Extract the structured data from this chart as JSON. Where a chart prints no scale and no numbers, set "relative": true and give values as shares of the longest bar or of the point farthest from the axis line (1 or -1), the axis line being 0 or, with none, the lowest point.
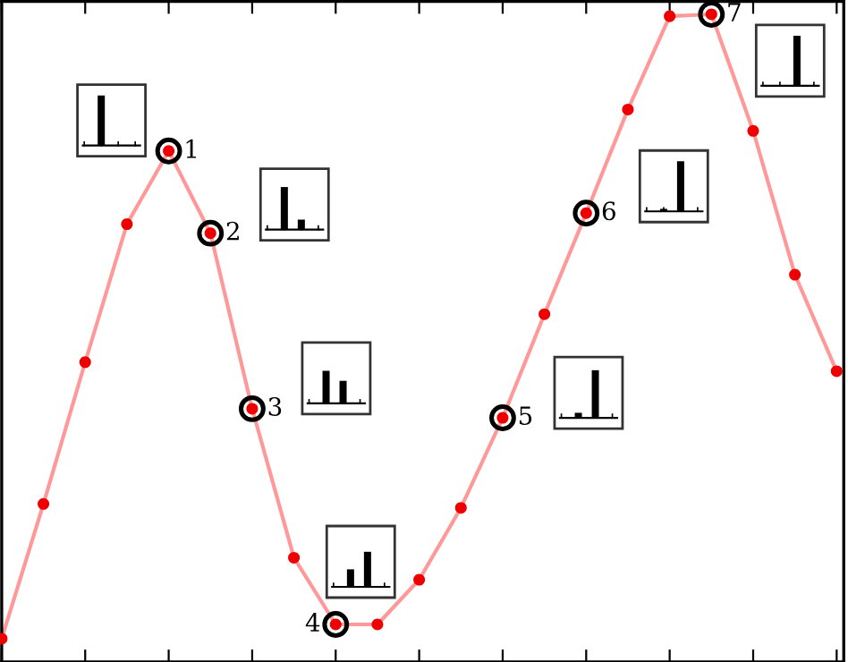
{
  "chart_data": {
    "type": "line",
    "relative": true,
    "categories": [
      null,
      null,
      null,
      null,
      null,
      null,
      null,
      null,
      null,
      null,
      null,
      null,
      null,
      null,
      null,
      null,
      null,
      null,
      null,
      null,
      null
    ],
    "series": [
      {
        "color": "#ff9999",
        "values": [
          0.036,
          0.244,
          0.463,
          0.676,
          0.789,
          0.662,
          0.391,
          0.161,
          0.058,
          0.058,
          0.127,
          0.238,
          0.377,
          0.537,
          0.693,
          0.853,
          0.997,
          1.0,
          0.82,
          0.598,
          0.449
        ]
      }
    ],
    "marker": "circle",
    "line_style": "solid",
    "grid": false,
    "legend": false,
    "annotations": [
      "1",
      "2",
      "3",
      "4",
      "5",
      "6",
      "7"
    ]
  }
}
